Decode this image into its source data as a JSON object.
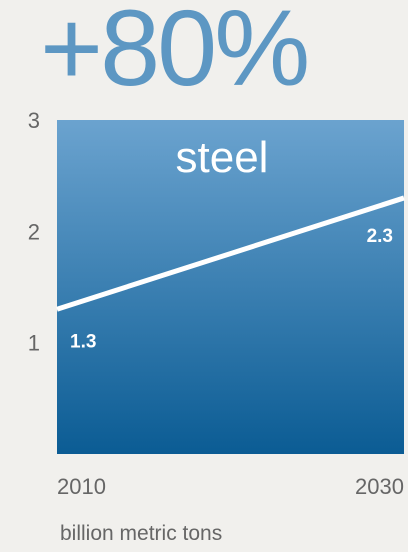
{
  "headline": "+80%",
  "chart_data": {
    "type": "area",
    "title": "+80%",
    "series_label": "steel",
    "unit_label": "billion metric tons",
    "x": [
      2010,
      2030
    ],
    "x_tick_labels": [
      "2010",
      "2030"
    ],
    "y_ticks": [
      1,
      2,
      3
    ],
    "y_tick_labels": [
      "1",
      "2",
      "3"
    ],
    "ylim": [
      0,
      3
    ],
    "series": [
      {
        "name": "steel",
        "values": [
          1.3,
          2.3
        ]
      }
    ],
    "data_labels": [
      "1.3",
      "2.3"
    ],
    "grid": false,
    "colors": {
      "fill_top": "#6ba3cf",
      "fill_bottom": "#0b5c94",
      "line": "#ffffff",
      "headline": "#5d97c3"
    }
  }
}
